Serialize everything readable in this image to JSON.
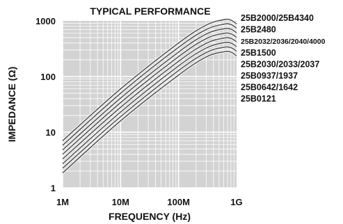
{
  "chart_data": {
    "type": "line",
    "title": "TYPICAL PERFORMANCE",
    "xlabel": "FREQUENCY (Hz)",
    "ylabel": "IMPEDANCE (Ω)",
    "x_scale": "log",
    "y_scale": "log",
    "xlim": [
      1000000,
      1000000000
    ],
    "ylim": [
      1,
      1000
    ],
    "x_ticks": [
      {
        "value": 1000000,
        "label": "1M"
      },
      {
        "value": 10000000,
        "label": "10M"
      },
      {
        "value": 100000000,
        "label": "100M"
      },
      {
        "value": 1000000000,
        "label": "1G"
      }
    ],
    "y_ticks": [
      {
        "value": 1,
        "label": "1"
      },
      {
        "value": 10,
        "label": "10"
      },
      {
        "value": 100,
        "label": "100"
      },
      {
        "value": 1000,
        "label": "1000"
      }
    ],
    "grid": true,
    "legend_position": "right",
    "x": [
      1000000,
      10000000,
      100000000,
      300000000,
      600000000,
      800000000,
      1000000000
    ],
    "series": [
      {
        "name": "25B2000/25B4340",
        "values": [
          7.0,
          60,
          400,
          840,
          1050,
          1030,
          880
        ]
      },
      {
        "name": "25B2480",
        "values": [
          5.8,
          50,
          335,
          700,
          870,
          860,
          740
        ]
      },
      {
        "name": "25B2032/2036/2040/4000",
        "values": [
          4.8,
          41,
          275,
          580,
          720,
          710,
          610
        ]
      },
      {
        "name": "25B1500",
        "values": [
          4.0,
          34,
          228,
          480,
          595,
          585,
          505
        ]
      },
      {
        "name": "25B2030/2033/2037",
        "values": [
          3.3,
          28,
          188,
          395,
          490,
          485,
          420
        ]
      },
      {
        "name": "25B0937/1937",
        "values": [
          2.7,
          23,
          155,
          325,
          405,
          400,
          345
        ]
      },
      {
        "name": "25B0642/1642",
        "values": [
          2.25,
          19,
          128,
          270,
          335,
          330,
          285
        ]
      },
      {
        "name": "25B0121",
        "values": [
          1.85,
          16,
          106,
          225,
          278,
          275,
          235
        ]
      }
    ]
  }
}
